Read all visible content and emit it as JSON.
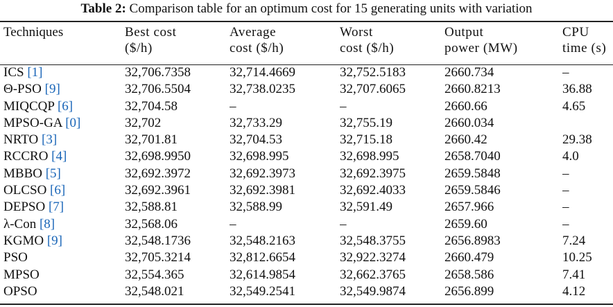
{
  "caption": {
    "label": "Table 2:",
    "text": "Comparison table for an optimum cost for 15 generating units with variation"
  },
  "headers": [
    {
      "line1": "Techniques",
      "line2": ""
    },
    {
      "line1": "Best cost",
      "line2": "($/h)"
    },
    {
      "line1": "Average",
      "line2": "cost ($/h)"
    },
    {
      "line1": "Worst",
      "line2": "cost ($/h)"
    },
    {
      "line1": "Output",
      "line2": "power (MW)"
    },
    {
      "line1": "CPU",
      "line2": "time (s)"
    }
  ],
  "rows": [
    {
      "technique": "ICS",
      "ref": "[1]",
      "best": "32,706.7358",
      "avg": "32,714.4669",
      "worst": "32,752.5183",
      "power": "2660.734",
      "cpu": "–"
    },
    {
      "technique": "Θ-PSO",
      "ref": "[9]",
      "best": "32,706.5504",
      "avg": "32,738.0235",
      "worst": "32,707.6065",
      "power": "2660.8213",
      "cpu": "36.88"
    },
    {
      "technique": "MIQCQP",
      "ref": "[6]",
      "best": "32,704.58",
      "avg": "–",
      "worst": "–",
      "power": "2660.66",
      "cpu": "4.65"
    },
    {
      "technique": "MPSO-GA",
      "ref": "[0]",
      "best": "32,702",
      "avg": "32,733.29",
      "worst": "32,755.19",
      "power": "2660.034",
      "cpu": ""
    },
    {
      "technique": "NRTO",
      "ref": "[3]",
      "best": "32,701.81",
      "avg": "32,704.53",
      "worst": "32,715.18",
      "power": "2660.42",
      "cpu": "29.38"
    },
    {
      "technique": "RCCRO",
      "ref": "[4]",
      "best": "32,698.9950",
      "avg": "32,698.995",
      "worst": "32,698.995",
      "power": "2658.7040",
      "cpu": "4.0"
    },
    {
      "technique": "MBBO",
      "ref": "[5]",
      "best": "32,692.3972",
      "avg": "32,692.3973",
      "worst": "32,692.3975",
      "power": "2659.5848",
      "cpu": "–"
    },
    {
      "technique": "OLCSO",
      "ref": "[6]",
      "best": "32,692.3961",
      "avg": "32,692.3981",
      "worst": "32,692.4033",
      "power": "2659.5846",
      "cpu": "–"
    },
    {
      "technique": "DEPSO",
      "ref": "[7]",
      "best": "32,588.81",
      "avg": "32,588.99",
      "worst": "32,591.49",
      "power": "2657.966",
      "cpu": "–"
    },
    {
      "technique": "λ-Con",
      "ref": "[8]",
      "best": "32,568.06",
      "avg": "–",
      "worst": "–",
      "power": "2659.60",
      "cpu": "–"
    },
    {
      "technique": "KGMO",
      "ref": "[9]",
      "best": "32,548.1736",
      "avg": "32,548.2163",
      "worst": "32,548.3755",
      "power": "2656.8983",
      "cpu": "7.24"
    },
    {
      "technique": "PSO",
      "ref": "",
      "best": "32,705.3214",
      "avg": "32,812.6654",
      "worst": "32,922.3274",
      "power": "2660.479",
      "cpu": "10.25"
    },
    {
      "technique": "MPSO",
      "ref": "",
      "best": "32,554.365",
      "avg": "32,614.9854",
      "worst": "32,662.3765",
      "power": "2658.586",
      "cpu": "7.41"
    },
    {
      "technique": "OPSO",
      "ref": "",
      "best": "32,548.021",
      "avg": "32,549.2541",
      "worst": "32,549.9874",
      "power": "2656.899",
      "cpu": "4.12",
      "bold": [
        "best",
        "power"
      ]
    }
  ],
  "colors": {
    "text": "#111111",
    "reference_link": "#1a66b8",
    "rule": "#222222"
  }
}
